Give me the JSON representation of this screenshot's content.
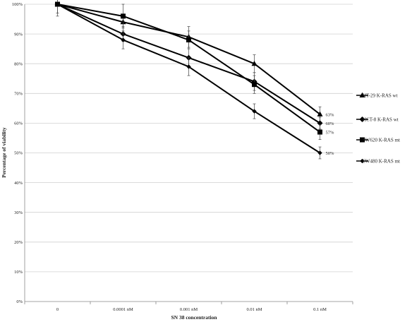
{
  "chart_data": {
    "type": "line",
    "categories": [
      "0",
      "0.0001 nM",
      "0.001 nM",
      "0.01 nM",
      "0.1 nM"
    ],
    "xlabel": "SN 38 concentration",
    "ylabel": "Percentage of viability",
    "ylim": [
      0,
      100
    ],
    "yticks": [
      0,
      10,
      20,
      30,
      40,
      50,
      60,
      70,
      80,
      90,
      100
    ],
    "ytick_suffix": "%",
    "grid": true,
    "legend_position": "right",
    "series": [
      {
        "name": "HT-29 K-RAS wt",
        "marker": "triangle",
        "values": [
          100,
          94,
          89,
          80,
          63
        ],
        "errors": [
          0,
          2,
          3.5,
          3,
          2.5
        ],
        "end_label": "63%"
      },
      {
        "name": "HCT-8 K-RAS wt",
        "marker": "diamond",
        "values": [
          100,
          90,
          82,
          74,
          60
        ],
        "errors": [
          0,
          2.5,
          3,
          3,
          2
        ],
        "end_label": "60%"
      },
      {
        "name": "SW620 K-RAS mt",
        "marker": "square",
        "values": [
          100,
          96,
          88,
          73,
          57
        ],
        "errors": [
          4,
          4,
          3,
          3,
          2.5
        ],
        "end_label": "57%"
      },
      {
        "name": "SW480 K-RAS mt",
        "marker": "diamond-small",
        "values": [
          100,
          88,
          79,
          64,
          50
        ],
        "errors": [
          3,
          3,
          3,
          2.5,
          2
        ],
        "end_label": "50%"
      }
    ]
  }
}
